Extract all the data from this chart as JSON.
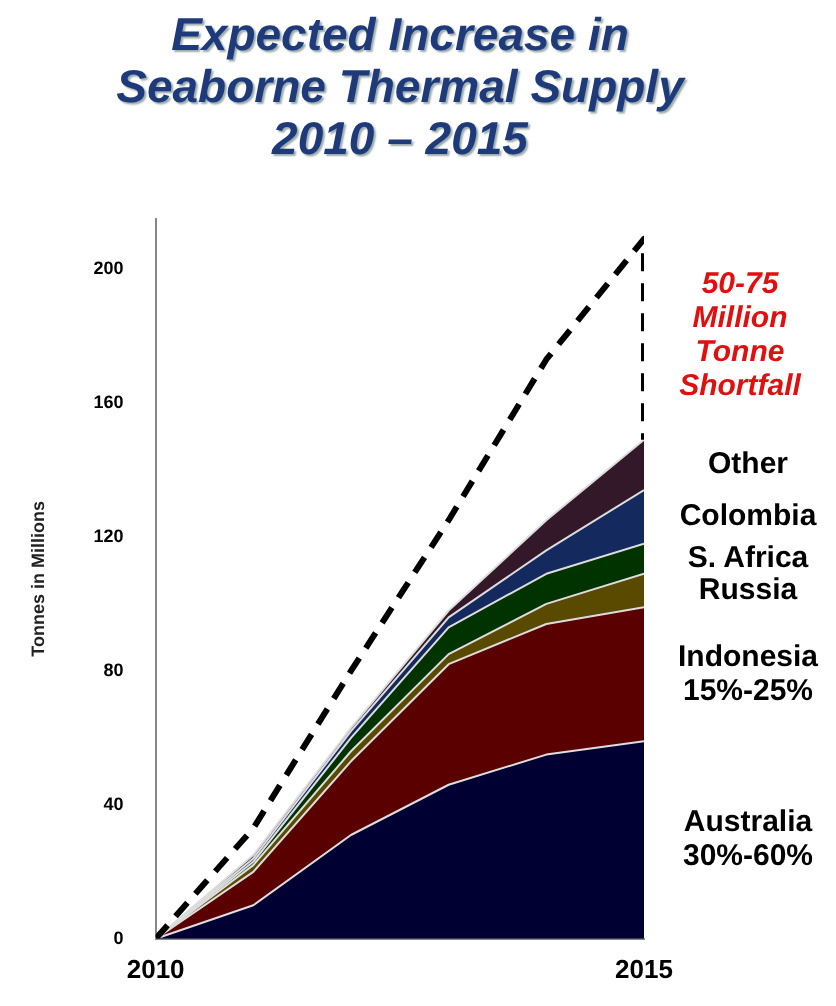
{
  "chart_data": {
    "type": "area",
    "title": "Expected Increase in Seaborne Thermal Supply 2010 – 2015",
    "ylabel": "Tonnes in Millions",
    "x": [
      2010,
      2011,
      2012,
      2013,
      2014,
      2015
    ],
    "xlim": [
      2010,
      2015
    ],
    "xticks": [
      2010,
      2015
    ],
    "ylim": [
      0,
      215
    ],
    "yticks": [
      0,
      40,
      80,
      120,
      160,
      200
    ],
    "stacked": true,
    "grid": false,
    "legend": false,
    "marker": "none",
    "series": [
      {
        "name": "Australia 30%-60%",
        "color": "#000033",
        "values": [
          0,
          10,
          31,
          46,
          55,
          59
        ]
      },
      {
        "name": "Indonesia 15%-25%",
        "color": "#5a0000",
        "values": [
          0,
          10,
          22,
          36,
          39,
          40
        ]
      },
      {
        "name": "Russia",
        "color": "#5a4a00",
        "values": [
          0,
          2,
          3,
          3,
          6,
          10
        ]
      },
      {
        "name": "S. Africa",
        "color": "#003300",
        "values": [
          0,
          1,
          4,
          8,
          9,
          9
        ]
      },
      {
        "name": "Colombia",
        "color": "#142a5e",
        "values": [
          0,
          1,
          2,
          3,
          7,
          16
        ]
      },
      {
        "name": "Other",
        "color": "#33182a",
        "values": [
          0,
          1,
          1,
          2,
          9,
          15
        ]
      },
      {
        "type": "line",
        "line_style": "dashed",
        "color": "#000000",
        "x": [
          2010,
          2011,
          2012,
          2013,
          2014,
          2015,
          2015
        ],
        "values": [
          0,
          33,
          80,
          125,
          173,
          209,
          149
        ]
      }
    ],
    "annotations": [
      {
        "text": "50-75 Million Tonne Shortfall",
        "x": 2015,
        "y": 180
      }
    ]
  }
}
